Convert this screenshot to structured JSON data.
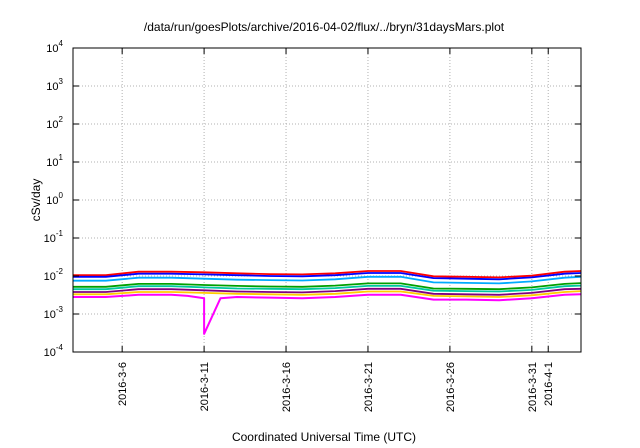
{
  "chart_data": {
    "type": "line",
    "title": "/data/run/goesPlots/archive/2016-04-02/flux/../bryn/31daysMars.plot",
    "xlabel": "Coordinated Universal Time (UTC)",
    "ylabel": "cSv/day",
    "y_scale": "log",
    "ylim": [
      0.0001,
      10000
    ],
    "xlim": [
      "2016-03-03",
      "2016-04-03"
    ],
    "grid": true,
    "y_ticks": [
      {
        "base": "10",
        "exp": "-4",
        "value": 0.0001
      },
      {
        "base": "10",
        "exp": "-3",
        "value": 0.001
      },
      {
        "base": "10",
        "exp": "-2",
        "value": 0.01
      },
      {
        "base": "10",
        "exp": "-1",
        "value": 0.1
      },
      {
        "base": "10",
        "exp": "0",
        "value": 1
      },
      {
        "base": "10",
        "exp": "1",
        "value": 10
      },
      {
        "base": "10",
        "exp": "2",
        "value": 100
      },
      {
        "base": "10",
        "exp": "3",
        "value": 1000
      },
      {
        "base": "10",
        "exp": "4",
        "value": 10000
      }
    ],
    "x_ticks": [
      {
        "label": "2016-3-6",
        "date": "2016-03-06"
      },
      {
        "label": "2016-3-11",
        "date": "2016-03-11"
      },
      {
        "label": "2016-3-16",
        "date": "2016-03-16"
      },
      {
        "label": "2016-3-21",
        "date": "2016-03-21"
      },
      {
        "label": "2016-3-26",
        "date": "2016-03-26"
      },
      {
        "label": "2016-3-31",
        "date": "2016-03-31"
      },
      {
        "label": "2016-4-1",
        "date": "2016-04-01"
      }
    ],
    "series": [
      {
        "color": "#ff0000",
        "x": [
          "2016-03-03",
          "2016-03-05",
          "2016-03-07",
          "2016-03-09",
          "2016-03-11",
          "2016-03-13",
          "2016-03-15",
          "2016-03-17",
          "2016-03-19",
          "2016-03-21",
          "2016-03-23",
          "2016-03-25",
          "2016-03-27",
          "2016-03-29",
          "2016-03-31",
          "2016-04-02",
          "2016-04-03"
        ],
        "values": [
          0.0105,
          0.0105,
          0.013,
          0.013,
          0.0125,
          0.0118,
          0.0112,
          0.011,
          0.0118,
          0.0135,
          0.0135,
          0.0098,
          0.0095,
          0.0092,
          0.0102,
          0.013,
          0.0135
        ]
      },
      {
        "color": "#0000ff",
        "x": [
          "2016-03-03",
          "2016-03-05",
          "2016-03-07",
          "2016-03-09",
          "2016-03-11",
          "2016-03-13",
          "2016-03-15",
          "2016-03-17",
          "2016-03-19",
          "2016-03-21",
          "2016-03-23",
          "2016-03-25",
          "2016-03-27",
          "2016-03-29",
          "2016-03-31",
          "2016-04-02",
          "2016-04-03"
        ],
        "values": [
          0.0095,
          0.0095,
          0.0115,
          0.0115,
          0.011,
          0.0105,
          0.01,
          0.0098,
          0.0105,
          0.012,
          0.012,
          0.0088,
          0.0085,
          0.0082,
          0.0092,
          0.0115,
          0.012
        ]
      },
      {
        "color": "#00aaff",
        "x": [
          "2016-03-03",
          "2016-03-05",
          "2016-03-07",
          "2016-03-09",
          "2016-03-11",
          "2016-03-13",
          "2016-03-15",
          "2016-03-17",
          "2016-03-19",
          "2016-03-21",
          "2016-03-23",
          "2016-03-25",
          "2016-03-27",
          "2016-03-29",
          "2016-03-31",
          "2016-04-02",
          "2016-04-03"
        ],
        "values": [
          0.0075,
          0.0075,
          0.009,
          0.009,
          0.0085,
          0.008,
          0.0078,
          0.0076,
          0.0082,
          0.0095,
          0.0095,
          0.0068,
          0.0066,
          0.0064,
          0.0072,
          0.009,
          0.0095
        ]
      },
      {
        "color": "#00a000",
        "x": [
          "2016-03-03",
          "2016-03-05",
          "2016-03-07",
          "2016-03-09",
          "2016-03-11",
          "2016-03-13",
          "2016-03-15",
          "2016-03-17",
          "2016-03-19",
          "2016-03-21",
          "2016-03-23",
          "2016-03-25",
          "2016-03-27",
          "2016-03-29",
          "2016-03-31",
          "2016-04-02",
          "2016-04-03"
        ],
        "values": [
          0.0052,
          0.0052,
          0.0062,
          0.0062,
          0.0058,
          0.0055,
          0.0053,
          0.0052,
          0.0056,
          0.0064,
          0.0064,
          0.0047,
          0.0046,
          0.0045,
          0.005,
          0.0062,
          0.0065
        ]
      },
      {
        "color": "#00c8a0",
        "x": [
          "2016-03-03",
          "2016-03-05",
          "2016-03-07",
          "2016-03-09",
          "2016-03-11",
          "2016-03-13",
          "2016-03-15",
          "2016-03-17",
          "2016-03-19",
          "2016-03-21",
          "2016-03-23",
          "2016-03-25",
          "2016-03-27",
          "2016-03-29",
          "2016-03-31",
          "2016-04-02",
          "2016-04-03"
        ],
        "values": [
          0.0045,
          0.0045,
          0.0054,
          0.0054,
          0.005,
          0.0047,
          0.0046,
          0.0045,
          0.0048,
          0.0055,
          0.0055,
          0.0041,
          0.004,
          0.0039,
          0.0043,
          0.0054,
          0.0056
        ]
      },
      {
        "color": "#800080",
        "x": [
          "2016-03-03",
          "2016-03-05",
          "2016-03-07",
          "2016-03-09",
          "2016-03-11",
          "2016-03-13",
          "2016-03-15",
          "2016-03-17",
          "2016-03-19",
          "2016-03-21",
          "2016-03-23",
          "2016-03-25",
          "2016-03-27",
          "2016-03-29",
          "2016-03-31",
          "2016-04-02",
          "2016-04-03"
        ],
        "values": [
          0.0038,
          0.0038,
          0.0045,
          0.0045,
          0.0042,
          0.0039,
          0.0038,
          0.0037,
          0.004,
          0.0046,
          0.0046,
          0.0034,
          0.0033,
          0.0032,
          0.0036,
          0.0045,
          0.0046
        ]
      },
      {
        "color": "#ffcc00",
        "x": [
          "2016-03-03",
          "2016-03-05",
          "2016-03-07",
          "2016-03-09",
          "2016-03-11",
          "2016-03-13",
          "2016-03-15",
          "2016-03-17",
          "2016-03-19",
          "2016-03-21",
          "2016-03-23",
          "2016-03-25",
          "2016-03-27",
          "2016-03-29",
          "2016-03-31",
          "2016-04-02",
          "2016-04-03"
        ],
        "values": [
          0.0033,
          0.0033,
          0.0038,
          0.0038,
          0.0036,
          0.0034,
          0.0033,
          0.0032,
          0.0034,
          0.0039,
          0.0039,
          0.003,
          0.0029,
          0.0028,
          0.0031,
          0.0038,
          0.004
        ]
      },
      {
        "color": "#ff00ff",
        "x": [
          "2016-03-03",
          "2016-03-05",
          "2016-03-07",
          "2016-03-09",
          "2016-03-10",
          "2016-03-11",
          "2016-03-11",
          "2016-03-12",
          "2016-03-13",
          "2016-03-15",
          "2016-03-17",
          "2016-03-19",
          "2016-03-21",
          "2016-03-23",
          "2016-03-25",
          "2016-03-27",
          "2016-03-29",
          "2016-03-31",
          "2016-04-02",
          "2016-04-03"
        ],
        "values": [
          0.0028,
          0.0028,
          0.0032,
          0.0032,
          0.003,
          0.0026,
          0.0003,
          0.0026,
          0.0028,
          0.0027,
          0.0026,
          0.0028,
          0.0032,
          0.0032,
          0.0024,
          0.0024,
          0.0023,
          0.0026,
          0.0032,
          0.0033
        ]
      }
    ]
  }
}
